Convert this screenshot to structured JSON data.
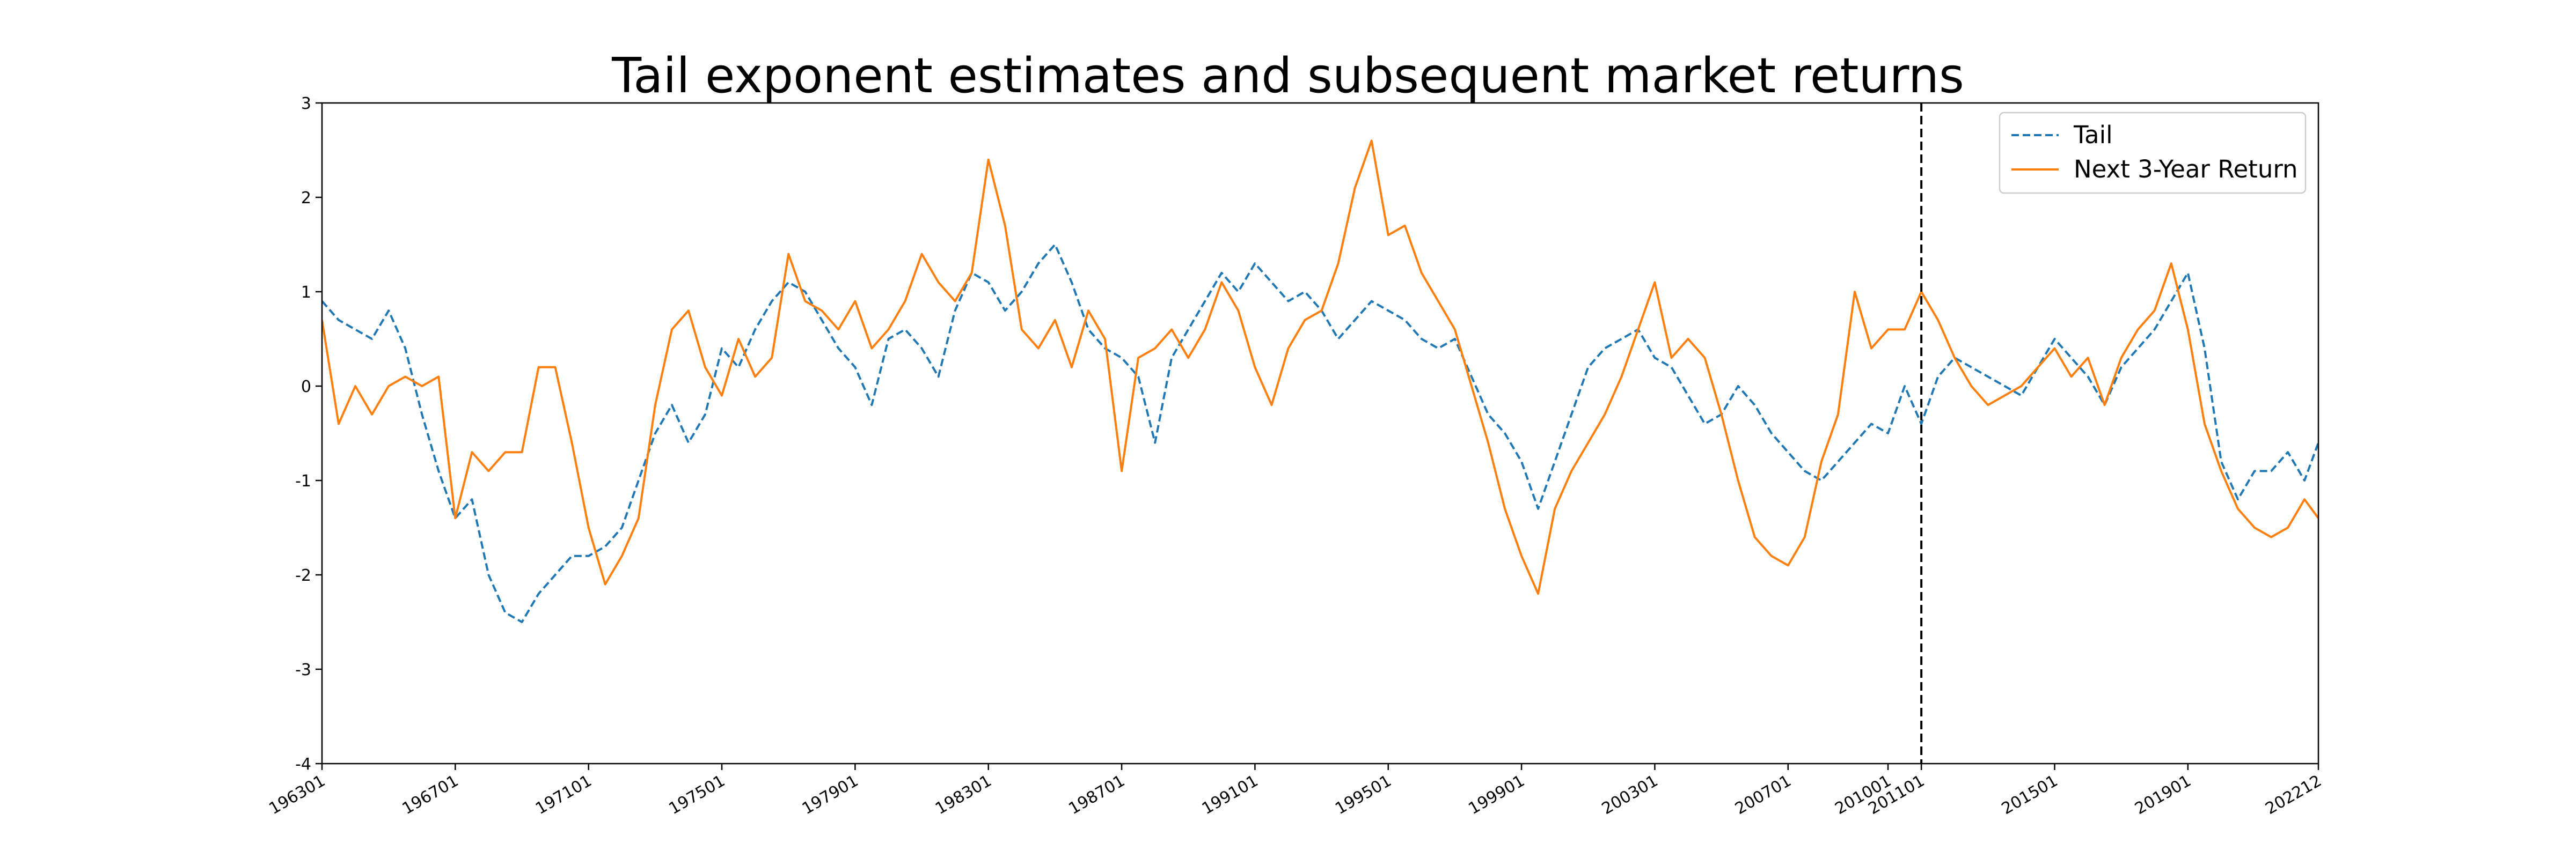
{
  "chart_data": {
    "type": "line",
    "title": "Tail exponent estimates and subsequent market returns",
    "xlabel": "",
    "ylabel": "",
    "ylim": [
      -4,
      3
    ],
    "yticks": [
      "-4",
      "-3",
      "-2",
      "-1",
      "0",
      "1",
      "2",
      "3"
    ],
    "xlim": [
      "196301",
      "202212"
    ],
    "xticks": [
      "196301",
      "196701",
      "197101",
      "197501",
      "197901",
      "198301",
      "198701",
      "199101",
      "199501",
      "199901",
      "200301",
      "200701",
      "201001",
      "201101",
      "201501",
      "201901",
      "202212"
    ],
    "vline": "201101",
    "legend_position": "top-right",
    "grid": false,
    "series": [
      {
        "name": "Tail",
        "color": "#1f77b4",
        "style": "dashed",
        "x": [
          "196301",
          "196307",
          "196401",
          "196407",
          "196501",
          "196507",
          "196601",
          "196607",
          "196701",
          "196707",
          "196801",
          "196807",
          "196901",
          "196907",
          "197001",
          "197007",
          "197101",
          "197107",
          "197201",
          "197207",
          "197301",
          "197307",
          "197401",
          "197407",
          "197501",
          "197507",
          "197601",
          "197607",
          "197701",
          "197707",
          "197801",
          "197807",
          "197901",
          "197907",
          "198001",
          "198007",
          "198101",
          "198107",
          "198201",
          "198207",
          "198301",
          "198307",
          "198401",
          "198407",
          "198501",
          "198507",
          "198601",
          "198607",
          "198701",
          "198707",
          "198801",
          "198807",
          "198901",
          "198907",
          "199001",
          "199007",
          "199101",
          "199107",
          "199201",
          "199207",
          "199301",
          "199307",
          "199401",
          "199407",
          "199501",
          "199507",
          "199601",
          "199607",
          "199701",
          "199707",
          "199801",
          "199807",
          "199901",
          "199907",
          "200001",
          "200007",
          "200101",
          "200107",
          "200201",
          "200207",
          "200301",
          "200307",
          "200401",
          "200407",
          "200501",
          "200507",
          "200601",
          "200607",
          "200701",
          "200707",
          "200801",
          "200807",
          "200901",
          "200907",
          "201001",
          "201007",
          "201101",
          "201107",
          "201201",
          "201207",
          "201301",
          "201307",
          "201401",
          "201407",
          "201501",
          "201507",
          "201601",
          "201607",
          "201701",
          "201707",
          "201801",
          "201807",
          "201901",
          "201907",
          "202001",
          "202007",
          "202101",
          "202107",
          "202201",
          "202207",
          "202212"
        ],
        "values": [
          0.9,
          0.7,
          0.6,
          0.5,
          0.8,
          0.4,
          -0.3,
          -0.9,
          -1.4,
          -1.2,
          -2.0,
          -2.4,
          -2.5,
          -2.2,
          -2.0,
          -1.8,
          -1.8,
          -1.7,
          -1.5,
          -1.0,
          -0.5,
          -0.2,
          -0.6,
          -0.3,
          0.4,
          0.2,
          0.6,
          0.9,
          1.1,
          1.0,
          0.7,
          0.4,
          0.2,
          -0.2,
          0.5,
          0.6,
          0.4,
          0.1,
          0.8,
          1.2,
          1.1,
          0.8,
          1.0,
          1.3,
          1.5,
          1.1,
          0.6,
          0.4,
          0.3,
          0.1,
          -0.6,
          0.3,
          0.6,
          0.9,
          1.2,
          1.0,
          1.3,
          1.1,
          0.9,
          1.0,
          0.8,
          0.5,
          0.7,
          0.9,
          0.8,
          0.7,
          0.5,
          0.4,
          0.5,
          0.1,
          -0.3,
          -0.5,
          -0.8,
          -1.3,
          -0.8,
          -0.3,
          0.2,
          0.4,
          0.5,
          0.6,
          0.3,
          0.2,
          -0.1,
          -0.4,
          -0.3,
          0.0,
          -0.2,
          -0.5,
          -0.7,
          -0.9,
          -1.0,
          -0.8,
          -0.6,
          -0.4,
          -0.5,
          0.0,
          -0.4,
          0.1,
          0.3,
          0.2,
          0.1,
          0.0,
          -0.1,
          0.2,
          0.5,
          0.3,
          0.1,
          -0.2,
          0.2,
          0.4,
          0.6,
          0.9,
          1.2,
          0.4,
          -0.8,
          -1.2,
          -0.9,
          -0.9,
          -0.7,
          -1.0,
          -0.6
        ]
      },
      {
        "name": "Next 3-Year Return",
        "color": "#ff7f0e",
        "style": "solid",
        "x": [
          "196301",
          "196307",
          "196401",
          "196407",
          "196501",
          "196507",
          "196601",
          "196607",
          "196701",
          "196707",
          "196801",
          "196807",
          "196901",
          "196907",
          "197001",
          "197007",
          "197101",
          "197107",
          "197201",
          "197207",
          "197301",
          "197307",
          "197401",
          "197407",
          "197501",
          "197507",
          "197601",
          "197607",
          "197701",
          "197707",
          "197801",
          "197807",
          "197901",
          "197907",
          "198001",
          "198007",
          "198101",
          "198107",
          "198201",
          "198207",
          "198301",
          "198307",
          "198401",
          "198407",
          "198501",
          "198507",
          "198601",
          "198607",
          "198701",
          "198707",
          "198801",
          "198807",
          "198901",
          "198907",
          "199001",
          "199007",
          "199101",
          "199107",
          "199201",
          "199207",
          "199301",
          "199307",
          "199401",
          "199407",
          "199501",
          "199507",
          "199601",
          "199607",
          "199701",
          "199707",
          "199801",
          "199807",
          "199901",
          "199907",
          "200001",
          "200007",
          "200101",
          "200107",
          "200201",
          "200207",
          "200301",
          "200307",
          "200401",
          "200407",
          "200501",
          "200507",
          "200601",
          "200607",
          "200701",
          "200707",
          "200801",
          "200807",
          "200901",
          "200907",
          "201001",
          "201007",
          "201101",
          "201107",
          "201201",
          "201207",
          "201301",
          "201307",
          "201401",
          "201407",
          "201501",
          "201507",
          "201601",
          "201607",
          "201701",
          "201707",
          "201801",
          "201807",
          "201901",
          "201907",
          "202001",
          "202007",
          "202101",
          "202107",
          "202201",
          "202207",
          "202212"
        ],
        "values": [
          0.7,
          -0.4,
          0.0,
          -0.3,
          0.0,
          0.1,
          0.0,
          0.1,
          -1.4,
          -0.7,
          -0.9,
          -0.7,
          -0.7,
          0.2,
          0.2,
          -0.6,
          -1.5,
          -2.1,
          -1.8,
          -1.4,
          -0.2,
          0.6,
          0.8,
          0.2,
          -0.1,
          0.5,
          0.1,
          0.3,
          1.4,
          0.9,
          0.8,
          0.6,
          0.9,
          0.4,
          0.6,
          0.9,
          1.4,
          1.1,
          0.9,
          1.2,
          2.4,
          1.7,
          0.6,
          0.4,
          0.7,
          0.2,
          0.8,
          0.5,
          -0.9,
          0.3,
          0.4,
          0.6,
          0.3,
          0.6,
          1.1,
          0.8,
          0.2,
          -0.2,
          0.4,
          0.7,
          0.8,
          1.3,
          2.1,
          2.6,
          1.6,
          1.7,
          1.2,
          0.9,
          0.6,
          0.0,
          -0.6,
          -1.3,
          -1.8,
          -2.2,
          -1.3,
          -0.9,
          -0.6,
          -0.3,
          0.1,
          0.6,
          1.1,
          0.3,
          0.5,
          0.3,
          -0.3,
          -1.0,
          -1.6,
          -1.8,
          -1.9,
          -1.6,
          -0.8,
          -0.3,
          1.0,
          0.4,
          0.6,
          0.6,
          1.0,
          0.7,
          0.3,
          0.0,
          -0.2,
          -0.1,
          0.0,
          0.2,
          0.4,
          0.1,
          0.3,
          -0.2,
          0.3,
          0.6,
          0.8,
          1.3,
          0.6,
          -0.4,
          -0.9,
          -1.3,
          -1.5,
          -1.6,
          -1.5,
          -1.2,
          -1.4
        ]
      }
    ]
  }
}
